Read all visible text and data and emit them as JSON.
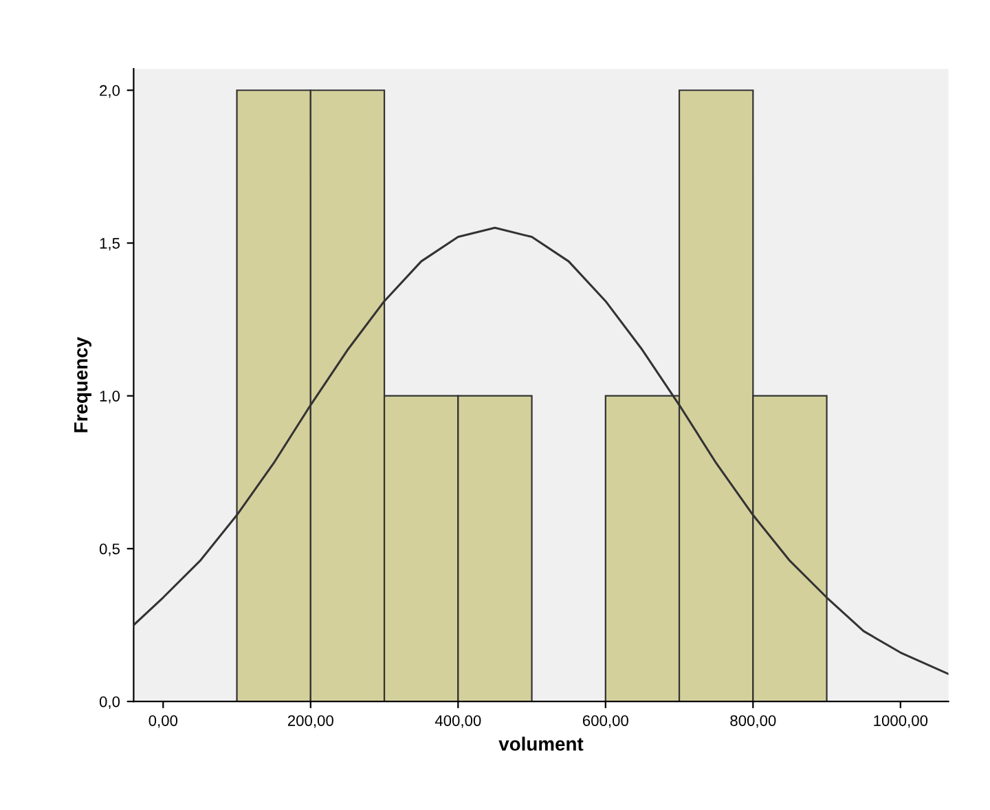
{
  "chart_data": {
    "type": "histogram",
    "xlabel": "volument",
    "ylabel": "Frequency",
    "bins": [
      100,
      200,
      300,
      400,
      500,
      600,
      700,
      800,
      900
    ],
    "values": [
      2,
      2,
      1,
      1,
      0,
      1,
      2,
      1
    ],
    "color": "#d4d09c",
    "series": [
      {
        "type": "line",
        "color": "#333333",
        "x": [
          -40,
          0,
          50,
          100,
          150,
          200,
          250,
          300,
          350,
          400,
          450,
          500,
          550,
          600,
          650,
          700,
          750,
          800,
          850,
          900,
          950,
          1000,
          1065
        ],
        "values": [
          0.25,
          0.34,
          0.46,
          0.61,
          0.78,
          0.97,
          1.15,
          1.31,
          1.44,
          1.52,
          1.55,
          1.52,
          1.44,
          1.31,
          1.15,
          0.97,
          0.78,
          0.61,
          0.46,
          0.34,
          0.23,
          0.16,
          0.09
        ]
      }
    ],
    "xlim": [
      -40,
      1065
    ],
    "ylim": [
      0,
      2.07
    ],
    "xticks": [
      {
        "value": 0,
        "label": "0,00"
      },
      {
        "value": 200,
        "label": "200,00"
      },
      {
        "value": 400,
        "label": "400,00"
      },
      {
        "value": 600,
        "label": "600,00"
      },
      {
        "value": 800,
        "label": "800,00"
      },
      {
        "value": 1000,
        "label": "1000,00"
      }
    ],
    "yticks": [
      {
        "value": 0,
        "label": "0,0"
      },
      {
        "value": 0.5,
        "label": "0,5"
      },
      {
        "value": 1,
        "label": "1,0"
      },
      {
        "value": 1.5,
        "label": "1,5"
      },
      {
        "value": 2,
        "label": "2,0"
      }
    ],
    "grid": false
  }
}
